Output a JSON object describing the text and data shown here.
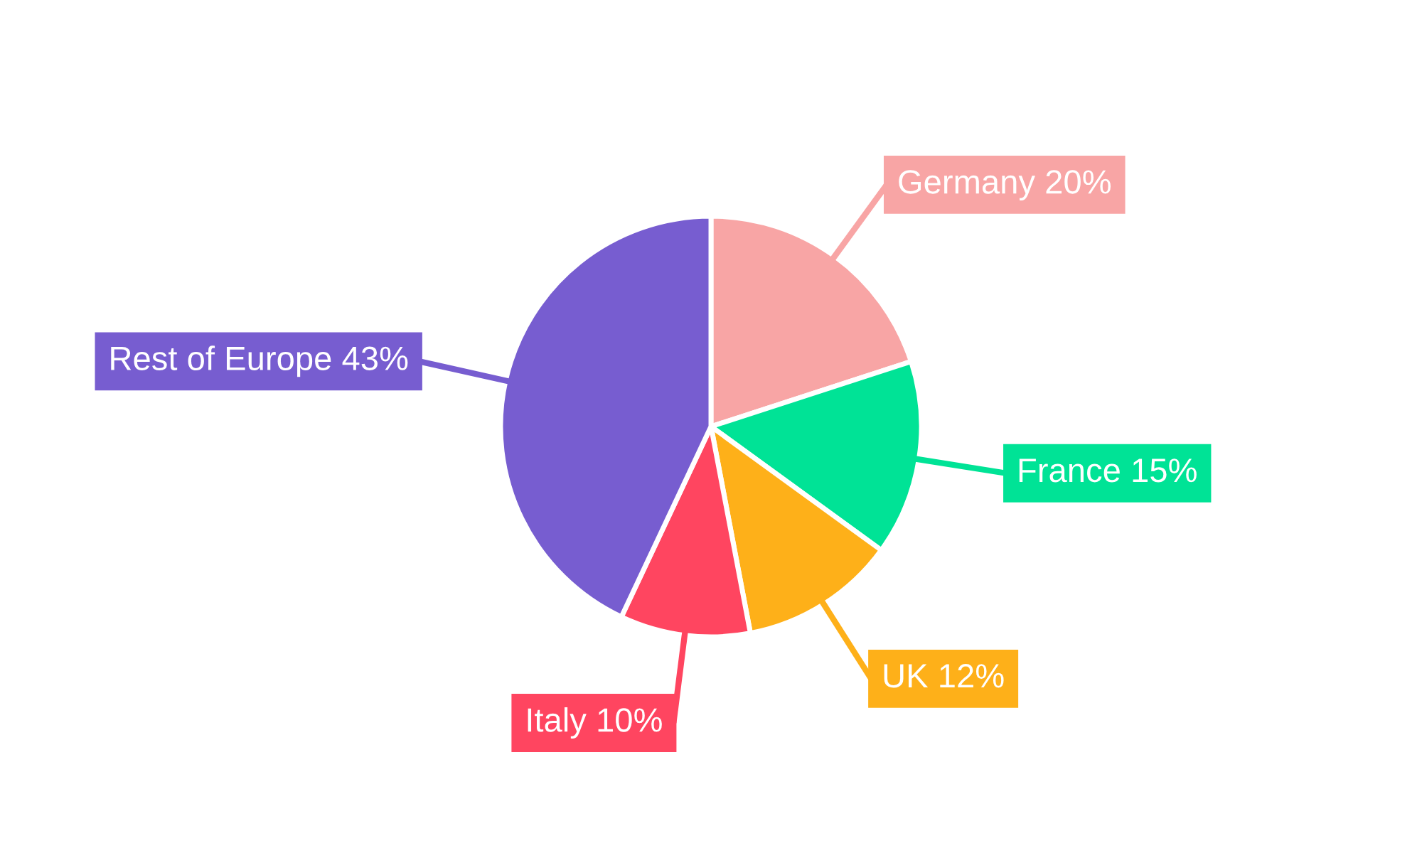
{
  "chart_data": {
    "type": "pie",
    "categories": [
      "Germany",
      "France",
      "UK",
      "Italy",
      "Rest of Europe"
    ],
    "values": [
      20,
      15,
      12,
      10,
      43
    ],
    "value_labels": [
      "20%",
      "15%",
      "12%",
      "10%",
      "43%"
    ],
    "colors": [
      "#f8a5a5",
      "#00e396",
      "#feb019",
      "#ff4560",
      "#775dd0"
    ],
    "legend": false
  }
}
